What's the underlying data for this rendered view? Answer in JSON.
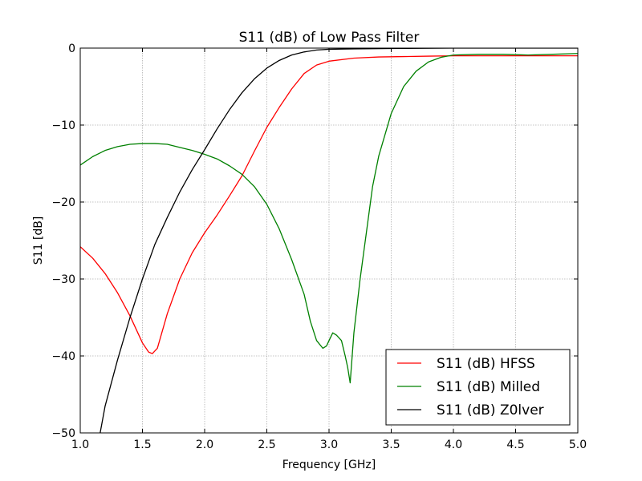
{
  "chart_data": {
    "type": "line",
    "title": "S11 (dB) of Low Pass Filter",
    "xlabel": "Frequency [GHz]",
    "ylabel": "S11 [dB]",
    "xlim": [
      1.0,
      5.0
    ],
    "ylim": [
      -50,
      0
    ],
    "xticks": [
      1.0,
      1.5,
      2.0,
      2.5,
      3.0,
      3.5,
      4.0,
      4.5,
      5.0
    ],
    "xtick_labels": [
      "1.0",
      "1.5",
      "2.0",
      "2.5",
      "3.0",
      "3.5",
      "4.0",
      "4.5",
      "5.0"
    ],
    "yticks": [
      0,
      -10,
      -20,
      -30,
      -40,
      -50
    ],
    "ytick_labels": [
      "0",
      "−10",
      "−20",
      "−30",
      "−40",
      "−50"
    ],
    "grid": true,
    "legend_position": "bottom-right",
    "series": [
      {
        "name": "S11 (dB) HFSS",
        "color": "#ff0000",
        "x": [
          1.0,
          1.1,
          1.2,
          1.3,
          1.4,
          1.5,
          1.55,
          1.58,
          1.62,
          1.7,
          1.8,
          1.9,
          2.0,
          2.1,
          2.2,
          2.3,
          2.4,
          2.5,
          2.6,
          2.7,
          2.8,
          2.9,
          3.0,
          3.2,
          3.4,
          3.6,
          3.8,
          4.0,
          4.5,
          5.0
        ],
        "y": [
          -25.8,
          -27.3,
          -29.3,
          -31.8,
          -34.8,
          -38.3,
          -39.5,
          -39.7,
          -39.0,
          -34.5,
          -30.0,
          -26.6,
          -24.0,
          -21.7,
          -19.2,
          -16.6,
          -13.4,
          -10.3,
          -7.7,
          -5.3,
          -3.3,
          -2.2,
          -1.7,
          -1.3,
          -1.15,
          -1.1,
          -1.05,
          -1.0,
          -1.0,
          -1.0
        ]
      },
      {
        "name": "S11 (dB) Milled",
        "color": "#008000",
        "x": [
          1.0,
          1.1,
          1.2,
          1.3,
          1.4,
          1.5,
          1.6,
          1.7,
          1.8,
          1.9,
          2.0,
          2.1,
          2.2,
          2.3,
          2.4,
          2.5,
          2.6,
          2.7,
          2.8,
          2.85,
          2.9,
          2.95,
          2.98,
          3.0,
          3.03,
          3.06,
          3.1,
          3.13,
          3.15,
          3.17,
          3.2,
          3.25,
          3.3,
          3.35,
          3.4,
          3.5,
          3.6,
          3.7,
          3.8,
          3.9,
          4.0,
          4.2,
          4.4,
          4.6,
          4.8,
          5.0
        ],
        "y": [
          -15.2,
          -14.1,
          -13.3,
          -12.8,
          -12.5,
          -12.4,
          -12.4,
          -12.5,
          -12.9,
          -13.3,
          -13.8,
          -14.4,
          -15.3,
          -16.4,
          -18.0,
          -20.3,
          -23.5,
          -27.5,
          -32.0,
          -35.5,
          -38.0,
          -39.0,
          -38.7,
          -38.0,
          -37.0,
          -37.3,
          -38.0,
          -40.0,
          -41.5,
          -43.5,
          -37.0,
          -30.0,
          -24.0,
          -18.0,
          -14.0,
          -8.5,
          -5.0,
          -3.0,
          -1.8,
          -1.2,
          -0.9,
          -0.8,
          -0.8,
          -0.9,
          -0.8,
          -0.7
        ]
      },
      {
        "name": "S11 (dB) Z0lver",
        "color": "#000000",
        "x": [
          1.16,
          1.2,
          1.3,
          1.4,
          1.5,
          1.6,
          1.7,
          1.8,
          1.9,
          2.0,
          2.1,
          2.2,
          2.3,
          2.4,
          2.5,
          2.6,
          2.7,
          2.8,
          2.9,
          3.0,
          3.2,
          3.5,
          4.0,
          5.0
        ],
        "y": [
          -50.0,
          -46.5,
          -40.5,
          -35.0,
          -30.0,
          -25.5,
          -22.0,
          -18.7,
          -15.8,
          -13.2,
          -10.5,
          -8.0,
          -5.8,
          -4.0,
          -2.6,
          -1.6,
          -0.9,
          -0.5,
          -0.25,
          -0.15,
          -0.1,
          -0.05,
          0.0,
          0.0
        ]
      }
    ]
  }
}
